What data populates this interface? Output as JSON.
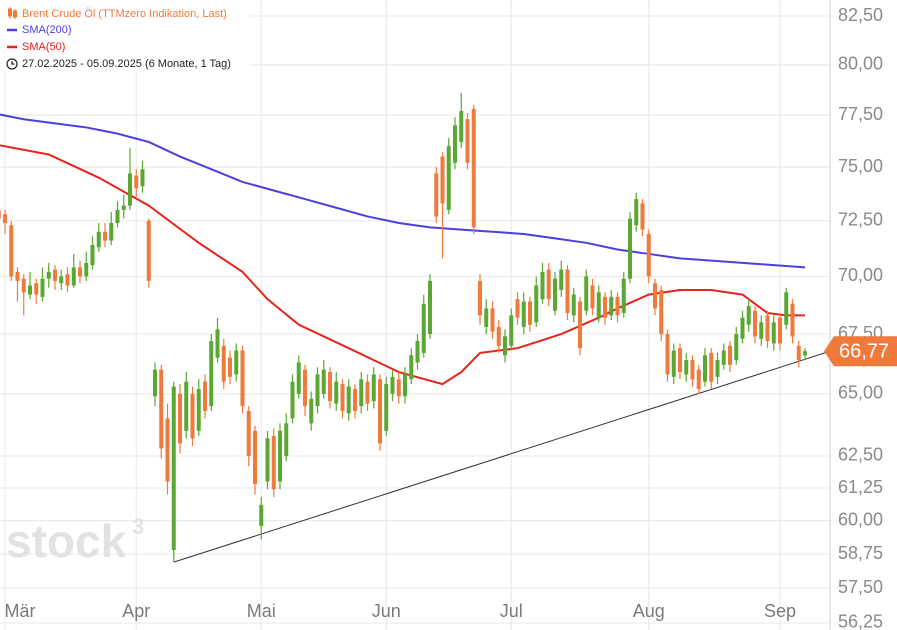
{
  "chart_data": {
    "type": "candlestick",
    "title": "Brent Crude Öl (TTMzero Indikation, Last)",
    "subtitle": "27.02.2025 - 05.09.2025  (6 Monate, 1 Tag)",
    "watermark": "stock",
    "watermark_sup": "3",
    "log_scale": true,
    "grid": true,
    "ylim": [
      56.0,
      83.34
    ],
    "yticks": [
      {
        "value": 82.5,
        "label": "82,50"
      },
      {
        "value": 80,
        "label": "80,00"
      },
      {
        "value": 77.5,
        "label": "77,50"
      },
      {
        "value": 75,
        "label": "75,00"
      },
      {
        "value": 72.5,
        "label": "72,50"
      },
      {
        "value": 70,
        "label": "70,00"
      },
      {
        "value": 67.5,
        "label": "67,50"
      },
      {
        "value": 65,
        "label": "65,00"
      },
      {
        "value": 62.5,
        "label": "62,50"
      },
      {
        "value": 61.25,
        "label": "61,25"
      },
      {
        "value": 60,
        "label": "60,00"
      },
      {
        "value": 58.75,
        "label": "58,75"
      },
      {
        "value": 57.5,
        "label": "57,50"
      },
      {
        "value": 56.25,
        "label": "56,25"
      }
    ],
    "xlim": [
      1.2,
      134
    ],
    "xticks": [
      {
        "value": 2,
        "label": "Mär"
      },
      {
        "value": 23,
        "label": "Apr"
      },
      {
        "value": 43,
        "label": "Mai"
      },
      {
        "value": 63,
        "label": "Jun"
      },
      {
        "value": 83,
        "label": "Jul"
      },
      {
        "value": 105,
        "label": "Aug"
      },
      {
        "value": 126,
        "label": "Sep"
      }
    ],
    "candles": {
      "up_color": "#5aa832",
      "down_color": "#f07a3c",
      "open": [
        72.2,
        73.0,
        72.8,
        72.3,
        70.2,
        69.9,
        69.2,
        69.7,
        69.1,
        69.9,
        70.3,
        69.7,
        70.1,
        69.6,
        70.4,
        70.0,
        70.5,
        71.3,
        72.0,
        71.6,
        72.4,
        73.0,
        73.2,
        74.6,
        74.1,
        72.5,
        64.9,
        66.0,
        64.0,
        58.9,
        65.0,
        63.5,
        65.0,
        63.5,
        65.5,
        64.5,
        66.5,
        67.0,
        66.5,
        65.8,
        66.8,
        64.3,
        63.5,
        59.8,
        61.5,
        63.3,
        61.5,
        62.5,
        64.0,
        65.0,
        66.0,
        63.8,
        64.5,
        65.0,
        65.9,
        64.6,
        65.4,
        64.2,
        65.2,
        64.5,
        65.5,
        64.7,
        65.6,
        63.5,
        65.0,
        65.6,
        64.9,
        65.6,
        66.3,
        66.7,
        67.5,
        74.7,
        75.5,
        73.0,
        75.2,
        76.2,
        77.3,
        77.8,
        69.8,
        67.8,
        68.6,
        67.8,
        66.6,
        67.0,
        69.0,
        67.8,
        68.9,
        68.0,
        69.0,
        70.3,
        68.5,
        69.4,
        70.3,
        68.3,
        68.9,
        68.5,
        69.6,
        68.2,
        69.1,
        68.3,
        69.1,
        68.4,
        69.9,
        72.3,
        73.3,
        71.9,
        69.7,
        69.4,
        67.5,
        65.7,
        66.9,
        65.8,
        66.4,
        66.0,
        65.5,
        66.7,
        65.7,
        66.2,
        67.0,
        66.4,
        67.3,
        67.9,
        68.5,
        67.3,
        68.3,
        67.1,
        68.2,
        67.9,
        68.8,
        67.0,
        66.6
      ],
      "high": [
        73.4,
        73.3,
        73.0,
        72.5,
        70.4,
        70.1,
        70.2,
        69.9,
        70.4,
        70.6,
        70.5,
        70.3,
        70.4,
        71.0,
        70.7,
        71.1,
        71.8,
        72.4,
        72.4,
        72.9,
        73.4,
        73.7,
        75.9,
        74.9,
        75.3,
        72.6,
        66.3,
        66.2,
        64.6,
        65.5,
        65.4,
        65.9,
        65.3,
        65.6,
        65.8,
        67.5,
        68.2,
        67.3,
        66.8,
        67.1,
        67.0,
        64.5,
        63.7,
        60.9,
        63.5,
        63.6,
        63.8,
        64.2,
        65.8,
        66.6,
        66.2,
        65.1,
        66.1,
        66.4,
        66.1,
        65.9,
        65.6,
        65.6,
        65.4,
        65.9,
        65.8,
        66.1,
        65.8,
        65.7,
        66.0,
        65.9,
        66.1,
        66.9,
        67.5,
        69.2,
        70.1,
        75.0,
        75.7,
        76.4,
        77.4,
        78.6,
        77.6,
        78.0,
        70.1,
        69.0,
        68.9,
        68.1,
        67.7,
        68.6,
        69.3,
        69.3,
        69.1,
        70.0,
        70.6,
        70.6,
        70.2,
        70.7,
        70.5,
        69.5,
        69.1,
        70.3,
        69.9,
        69.6,
        69.3,
        69.4,
        69.3,
        70.2,
        72.9,
        73.8,
        73.5,
        72.1,
        69.9,
        69.6,
        67.7,
        67.1,
        67.1,
        66.7,
        66.6,
        66.2,
        66.9,
        66.9,
        66.7,
        67.1,
        67.2,
        67.8,
        68.5,
        69.0,
        68.7,
        68.3,
        68.5,
        68.3,
        68.4,
        69.5,
        69.0,
        67.2,
        66.9
      ],
      "low": [
        72.0,
        72.2,
        71.9,
        69.8,
        68.9,
        68.3,
        69.0,
        68.8,
        68.9,
        69.5,
        69.4,
        69.4,
        69.3,
        69.5,
        69.7,
        69.8,
        70.3,
        71.1,
        71.3,
        71.4,
        72.2,
        72.6,
        73.0,
        73.6,
        73.8,
        69.5,
        64.5,
        62.4,
        61.0,
        58.45,
        62.6,
        63.2,
        62.9,
        63.3,
        64.0,
        64.3,
        66.3,
        65.2,
        65.4,
        65.5,
        64.2,
        62.1,
        61.0,
        59.3,
        61.2,
        60.9,
        61.2,
        62.3,
        63.8,
        64.8,
        64.1,
        63.5,
        64.2,
        64.8,
        64.4,
        64.3,
        64.0,
        63.9,
        64.0,
        64.2,
        64.3,
        64.4,
        62.7,
        63.3,
        64.7,
        64.6,
        64.6,
        65.4,
        66.0,
        66.5,
        67.3,
        72.4,
        70.8,
        72.8,
        74.9,
        75.9,
        74.9,
        71.9,
        67.9,
        67.5,
        67.3,
        66.7,
        66.3,
        66.8,
        67.9,
        67.5,
        67.6,
        67.8,
        68.8,
        68.7,
        68.3,
        69.1,
        68.1,
        68.0,
        66.6,
        68.3,
        68.3,
        68.0,
        67.9,
        68.1,
        68.0,
        68.2,
        69.7,
        72.0,
        71.8,
        69.7,
        68.3,
        67.2,
        65.5,
        65.4,
        65.6,
        65.5,
        65.3,
        65.0,
        65.3,
        65.2,
        65.4,
        66.0,
        65.9,
        66.2,
        67.1,
        67.6,
        67.1,
        67.0,
        66.9,
        66.8,
        66.8,
        67.7,
        67.1,
        66.1,
        66.4
      ],
      "close": [
        73.0,
        72.6,
        72.4,
        70.0,
        69.8,
        69.3,
        69.6,
        69.2,
        69.9,
        70.2,
        69.8,
        70.0,
        69.6,
        70.4,
        70.0,
        70.6,
        71.4,
        72.0,
        71.6,
        72.4,
        73.0,
        73.2,
        74.7,
        74.0,
        74.9,
        69.8,
        66.0,
        62.8,
        61.5,
        65.3,
        63.0,
        65.5,
        63.2,
        65.2,
        64.3,
        67.2,
        67.7,
        65.5,
        65.7,
        66.8,
        64.5,
        62.5,
        61.4,
        60.6,
        63.2,
        61.2,
        63.5,
        63.8,
        65.5,
        66.3,
        64.5,
        64.8,
        65.8,
        66.0,
        64.7,
        65.5,
        64.3,
        65.3,
        64.3,
        65.6,
        64.6,
        65.8,
        63.0,
        65.4,
        65.7,
        64.9,
        65.8,
        66.6,
        67.2,
        68.8,
        69.8,
        72.7,
        73.3,
        76.0,
        77.0,
        77.7,
        75.2,
        72.2,
        68.3,
        68.6,
        67.6,
        67.0,
        67.4,
        68.3,
        68.2,
        68.9,
        67.9,
        69.6,
        70.2,
        69.0,
        69.9,
        70.3,
        68.4,
        69.2,
        66.9,
        70.0,
        68.6,
        69.3,
        68.2,
        69.1,
        68.3,
        69.9,
        72.6,
        73.5,
        72.1,
        70.0,
        68.6,
        67.5,
        65.8,
        66.8,
        65.9,
        66.4,
        65.6,
        65.2,
        66.6,
        65.5,
        66.4,
        66.8,
        66.2,
        67.5,
        68.2,
        68.7,
        67.4,
        68.0,
        67.2,
        68.0,
        67.1,
        69.3,
        67.4,
        66.4,
        66.77
      ]
    },
    "lines": [
      {
        "name": "SMA(200)",
        "color": "#4b3fe0",
        "x": [
          0,
          5,
          10,
          15,
          20,
          25,
          30,
          35,
          40,
          45,
          50,
          55,
          60,
          65,
          70,
          75,
          80,
          85,
          90,
          95,
          100,
          105,
          110,
          115,
          120,
          125,
          130
        ],
        "values": [
          77.6,
          77.3,
          77.1,
          76.9,
          76.6,
          76.2,
          75.5,
          74.9,
          74.3,
          73.9,
          73.5,
          73.1,
          72.7,
          72.4,
          72.2,
          72.1,
          72.0,
          71.9,
          71.7,
          71.5,
          71.2,
          71.0,
          70.8,
          70.7,
          70.6,
          70.5,
          70.4
        ]
      },
      {
        "name": "SMA(50)",
        "color": "#e8231c",
        "x": [
          0,
          9,
          17,
          25,
          33,
          40,
          44,
          49,
          57,
          65,
          72,
          75,
          78,
          84,
          91,
          97,
          100,
          105,
          110,
          115,
          120,
          124,
          127,
          130
        ],
        "values": [
          76.1,
          75.6,
          74.5,
          73.2,
          71.5,
          70.2,
          69.0,
          67.9,
          66.9,
          65.9,
          65.4,
          65.9,
          66.7,
          66.9,
          67.5,
          68.2,
          68.6,
          69.2,
          69.4,
          69.4,
          69.2,
          68.4,
          68.3,
          68.3
        ]
      }
    ],
    "trendline": {
      "color": "#333333",
      "x": [
        29,
        134
      ],
      "values": [
        58.45,
        66.77
      ]
    },
    "last_price": {
      "value": 66.77,
      "label": "66,77",
      "color": "#f07a3c"
    }
  }
}
